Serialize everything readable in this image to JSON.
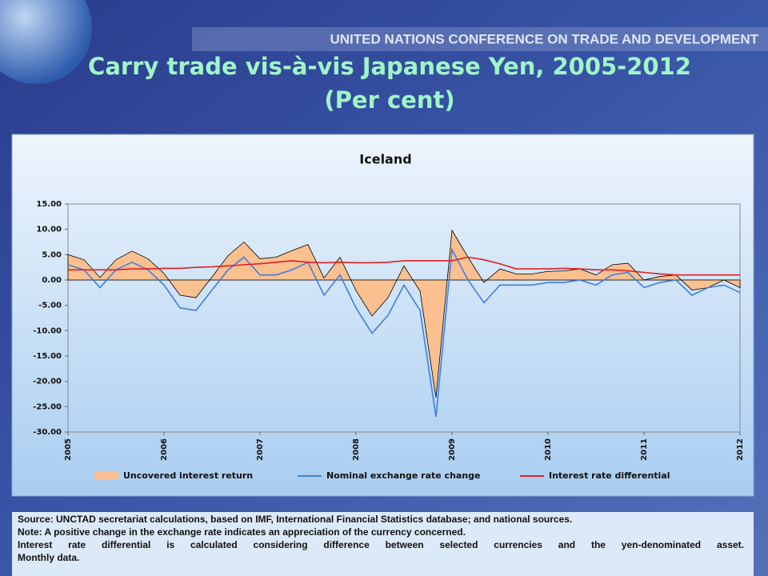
{
  "slide": {
    "banner": "UNITED NATIONS CONFERENCE ON TRADE AND DEVELOPMENT",
    "title": "Carry trade vis-à-vis Japanese Yen, 2005-2012",
    "subtitle": "(Per cent)"
  },
  "notes": [
    "Source: UNCTAD secretariat calculations, based on IMF, International Financial Statistics database; and national sources.",
    "Note: A positive change in the exchange rate indicates an appreciation of the currency concerned.",
    "Interest rate differential is calculated considering  difference between selected currencies and the yen-denominated asset.",
    "Monthly data."
  ],
  "chart_data": {
    "type": "line",
    "title": "Iceland",
    "x": [
      2005.0,
      2005.167,
      2005.333,
      2005.5,
      2005.667,
      2005.833,
      2006.0,
      2006.167,
      2006.333,
      2006.5,
      2006.667,
      2006.833,
      2007.0,
      2007.167,
      2007.333,
      2007.5,
      2007.667,
      2007.833,
      2008.0,
      2008.167,
      2008.333,
      2008.5,
      2008.667,
      2008.833,
      2009.0,
      2009.167,
      2009.333,
      2009.5,
      2009.667,
      2009.833,
      2010.0,
      2010.167,
      2010.333,
      2010.5,
      2010.667,
      2010.833,
      2011.0,
      2011.167,
      2011.333,
      2011.5,
      2011.667,
      2011.833,
      2012.0
    ],
    "series": [
      {
        "name": "Uncovered interest return",
        "kind": "area",
        "color": "#fac090",
        "values": [
          5.0,
          4.0,
          0.5,
          4.0,
          5.7,
          4.2,
          1.3,
          -3.0,
          -3.5,
          0.6,
          4.8,
          7.5,
          4.2,
          4.5,
          5.8,
          7.0,
          0.4,
          4.5,
          -2.1,
          -7.1,
          -3.5,
          2.8,
          -2.2,
          -23.2,
          9.8,
          4.5,
          -0.5,
          2.2,
          1.2,
          1.2,
          1.7,
          1.8,
          2.2,
          1.0,
          3.0,
          3.3,
          0.0,
          0.7,
          1.0,
          -2.0,
          -1.5,
          0.0,
          -1.5
        ]
      },
      {
        "name": "Nominal exchange rate change",
        "kind": "line",
        "color": "#3f7fdf",
        "values": [
          3.0,
          2.0,
          -1.5,
          2.0,
          3.5,
          2.0,
          -1.0,
          -5.5,
          -6.0,
          -2.0,
          2.0,
          4.5,
          1.0,
          1.0,
          2.0,
          3.5,
          -3.0,
          1.0,
          -5.5,
          -10.5,
          -7.0,
          -1.0,
          -6.0,
          -27.0,
          6.0,
          0.0,
          -4.5,
          -1.0,
          -1.0,
          -1.0,
          -0.5,
          -0.5,
          0.0,
          -1.0,
          1.0,
          1.5,
          -1.5,
          -0.5,
          0.0,
          -3.0,
          -1.5,
          -1.0,
          -2.5
        ]
      },
      {
        "name": "Interest rate differential",
        "kind": "line",
        "color": "#e02020",
        "values": [
          2.0,
          2.0,
          2.0,
          2.0,
          2.2,
          2.2,
          2.3,
          2.3,
          2.5,
          2.6,
          2.8,
          3.0,
          3.2,
          3.5,
          3.8,
          3.5,
          3.4,
          3.5,
          3.4,
          3.4,
          3.5,
          3.8,
          3.8,
          3.8,
          3.8,
          4.5,
          4.0,
          3.2,
          2.2,
          2.2,
          2.2,
          2.3,
          2.2,
          2.0,
          2.0,
          1.8,
          1.5,
          1.2,
          1.0,
          1.0,
          1.0,
          1.0,
          1.0
        ]
      }
    ],
    "xlim": [
      2005,
      2012
    ],
    "xticks": [
      2005,
      2006,
      2007,
      2008,
      2009,
      2010,
      2011,
      2012
    ],
    "ylim": [
      -30,
      15
    ],
    "yticks": [
      {
        "value": -30,
        "label": "-30.00"
      },
      {
        "value": -25,
        "label": "-25.00"
      },
      {
        "value": -20,
        "label": "-20.00"
      },
      {
        "value": -15,
        "label": "-15.00"
      },
      {
        "value": -10,
        "label": "-10.00"
      },
      {
        "value": -5,
        "label": "-5.00"
      },
      {
        "value": 0,
        "label": "0.00"
      },
      {
        "value": 5,
        "label": "5.00"
      },
      {
        "value": 10,
        "label": "10.00"
      },
      {
        "value": 15,
        "label": "15.00"
      }
    ],
    "legend": "bottom"
  }
}
